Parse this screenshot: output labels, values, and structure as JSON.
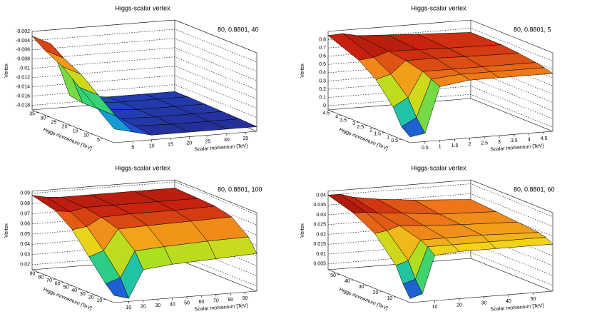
{
  "chart_data": [
    {
      "type": "surface",
      "title": "Higgs-scalar vertex",
      "annotation": "80, 0.8801, 40",
      "x_label": "Scalar momentum [TeV]",
      "y_label": "Higgs momentum [TeV]",
      "z_label": "Vertex",
      "x": [
        0,
        5,
        10,
        20,
        30,
        38
      ],
      "y": [
        0,
        8,
        16,
        24,
        32,
        38
      ],
      "z": [
        [
          -0.016,
          -0.017,
          -0.018,
          -0.018,
          -0.018,
          -0.018
        ],
        [
          -0.013,
          -0.015,
          -0.0175,
          -0.0178,
          -0.0178,
          -0.0178
        ],
        [
          -0.01,
          -0.012,
          -0.0175,
          -0.0177,
          -0.0177,
          -0.0177
        ],
        [
          -0.007,
          -0.009,
          -0.017,
          -0.0176,
          -0.0176,
          -0.0176
        ],
        [
          -0.005,
          -0.007,
          -0.017,
          -0.0175,
          -0.0175,
          -0.0175
        ],
        [
          -0.003,
          -0.005,
          -0.0165,
          -0.0175,
          -0.0175,
          -0.0175
        ]
      ],
      "xlim": [
        0,
        38
      ],
      "ylim": [
        0,
        38
      ],
      "zlim": [
        -0.019,
        -0.002
      ],
      "xticks": [
        5,
        10,
        15,
        20,
        25,
        30,
        35
      ],
      "yticks": [
        5,
        10,
        15,
        20,
        25,
        30,
        35
      ],
      "zticks": [
        -0.018,
        -0.016,
        -0.014,
        -0.012,
        -0.01,
        -0.008,
        -0.006,
        -0.004,
        -0.002
      ],
      "colormap": [
        "#2a0c5e",
        "#1f4fd0",
        "#12b3d6",
        "#2fd17a",
        "#a8e01e",
        "#f2d21b",
        "#f07a18",
        "#c8200f",
        "#4a0c08"
      ]
    },
    {
      "type": "surface",
      "title": "Higgs-scalar vertex",
      "annotation": "80, 0.8801, 5",
      "x_label": "Scalar momentum [TeV]",
      "y_label": "Higgs momentum [TeV]",
      "z_label": "Vertex",
      "x": [
        0,
        0.5,
        1,
        2,
        3,
        4.8
      ],
      "y": [
        0,
        0.5,
        1,
        2,
        3,
        4.8
      ],
      "z": [
        [
          0.02,
          0.05,
          0.6,
          0.65,
          0.65,
          0.65
        ],
        [
          0.1,
          0.2,
          0.65,
          0.68,
          0.68,
          0.68
        ],
        [
          0.3,
          0.4,
          0.7,
          0.7,
          0.7,
          0.7
        ],
        [
          0.55,
          0.6,
          0.75,
          0.75,
          0.74,
          0.73
        ],
        [
          0.7,
          0.72,
          0.78,
          0.77,
          0.76,
          0.75
        ],
        [
          0.85,
          0.86,
          0.82,
          0.8,
          0.78,
          0.75
        ]
      ],
      "xlim": [
        0,
        4.8
      ],
      "ylim": [
        0,
        4.8
      ],
      "zlim": [
        -0.05,
        0.9
      ],
      "xticks": [
        0.5,
        1,
        1.5,
        2,
        2.5,
        3,
        3.5,
        4,
        4.5
      ],
      "yticks": [
        0.5,
        1,
        1.5,
        2,
        2.5,
        3,
        3.5,
        4,
        4.5
      ],
      "zticks": [
        0,
        0.1,
        0.2,
        0.3,
        0.4,
        0.5,
        0.6,
        0.7,
        0.8
      ],
      "colormap": [
        "#2a0c5e",
        "#1f4fd0",
        "#12b3d6",
        "#2fd17a",
        "#a8e01e",
        "#f2d21b",
        "#f07a18",
        "#c8200f",
        "#4a0c08"
      ]
    },
    {
      "type": "surface",
      "title": "Higgs-scalar vertex",
      "annotation": "80, 0.8801, 100",
      "x_label": "Scalar momentum [TeV]",
      "y_label": "Higgs momentum [TeV]",
      "z_label": "Vertex",
      "x": [
        0,
        10,
        20,
        40,
        70,
        98
      ],
      "y": [
        0,
        10,
        30,
        50,
        70,
        98
      ],
      "z": [
        [
          0.022,
          0.018,
          0.045,
          0.048,
          0.05,
          0.052
        ],
        [
          0.03,
          0.035,
          0.06,
          0.062,
          0.064,
          0.065
        ],
        [
          0.05,
          0.055,
          0.075,
          0.076,
          0.077,
          0.078
        ],
        [
          0.07,
          0.072,
          0.08,
          0.081,
          0.081,
          0.082
        ],
        [
          0.082,
          0.08,
          0.083,
          0.083,
          0.083,
          0.083
        ],
        [
          0.088,
          0.085,
          0.084,
          0.084,
          0.084,
          0.084
        ]
      ],
      "xlim": [
        0,
        98
      ],
      "ylim": [
        0,
        98
      ],
      "zlim": [
        0.015,
        0.092
      ],
      "xticks": [
        10,
        20,
        30,
        40,
        50,
        60,
        70,
        80,
        90
      ],
      "yticks": [
        10,
        20,
        30,
        40,
        50,
        60,
        70,
        80,
        90
      ],
      "zticks": [
        0.02,
        0.03,
        0.04,
        0.05,
        0.06,
        0.07,
        0.08,
        0.09
      ],
      "colormap": [
        "#2a0c5e",
        "#1f4fd0",
        "#12b3d6",
        "#2fd17a",
        "#a8e01e",
        "#f2d21b",
        "#f07a18",
        "#c8200f",
        "#4a0c08"
      ]
    },
    {
      "type": "surface",
      "title": "Higgs-scalar vertex",
      "annotation": "80, 0.8801, 60",
      "x_label": "Scalar momentum [TeV]",
      "y_label": "Higgs momentum [TeV]",
      "z_label": "Vertex",
      "x": [
        0,
        5,
        10,
        20,
        35,
        58
      ],
      "y": [
        0,
        5,
        10,
        25,
        40,
        58
      ],
      "z": [
        [
          0.004,
          0.006,
          0.025,
          0.026,
          0.026,
          0.026
        ],
        [
          0.01,
          0.012,
          0.028,
          0.028,
          0.028,
          0.028
        ],
        [
          0.018,
          0.02,
          0.03,
          0.03,
          0.03,
          0.029
        ],
        [
          0.03,
          0.031,
          0.033,
          0.032,
          0.031,
          0.03
        ],
        [
          0.036,
          0.036,
          0.035,
          0.034,
          0.032,
          0.031
        ],
        [
          0.04,
          0.04,
          0.038,
          0.036,
          0.034,
          0.032
        ]
      ],
      "xlim": [
        0,
        58
      ],
      "ylim": [
        0,
        58
      ],
      "zlim": [
        0.002,
        0.042
      ],
      "xticks": [
        10,
        20,
        30,
        40,
        50
      ],
      "yticks": [
        10,
        20,
        30,
        40,
        50
      ],
      "zticks": [
        0.005,
        0.01,
        0.015,
        0.02,
        0.025,
        0.03,
        0.035,
        0.04
      ],
      "colormap": [
        "#2a0c5e",
        "#1f4fd0",
        "#12b3d6",
        "#2fd17a",
        "#a8e01e",
        "#f2d21b",
        "#f07a18",
        "#c8200f",
        "#4a0c08"
      ]
    }
  ]
}
